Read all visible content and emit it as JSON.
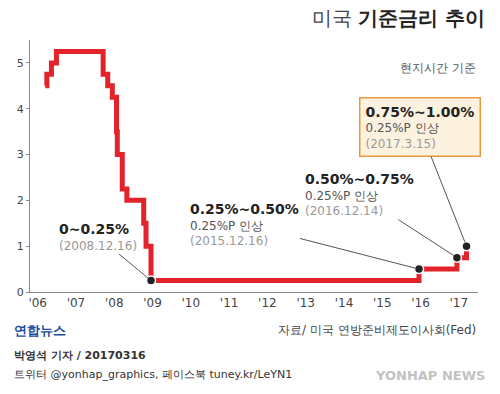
{
  "chart_data": {
    "type": "line",
    "title": "미국 기준금리 추이",
    "subtitle": "현지시간 기준",
    "source": "자료/ 미국 연방준비제도이사회(Fed)",
    "credits": [
      "박영석 기자 / 20170316",
      "트위터 @yonhap_graphics, 페이스북 tuney.kr/LeYN1"
    ],
    "logo": "연합뉴스",
    "watermark": "YONHAP NEWS",
    "x": [
      2006.2,
      2006.24,
      2006.36,
      2006.49,
      2007.71,
      2007.83,
      2007.95,
      2008.06,
      2008.08,
      2008.21,
      2008.33,
      2008.77,
      2008.83,
      2008.96,
      2015.96,
      2016.95,
      2017.2
    ],
    "values": [
      4.5,
      4.75,
      5.0,
      5.25,
      4.75,
      4.5,
      4.25,
      3.5,
      3.0,
      2.25,
      2.0,
      1.5,
      1.0,
      0.25,
      0.5,
      0.75,
      1.0
    ],
    "color": "#e3232b",
    "line_style": "step",
    "xlim": [
      2005.8,
      2017.5
    ],
    "xticks": [
      {
        "value": 2006,
        "label": "'06"
      },
      {
        "value": 2007,
        "label": "'07"
      },
      {
        "value": 2008,
        "label": "'08"
      },
      {
        "value": 2009,
        "label": "'09"
      },
      {
        "value": 2010,
        "label": "'10"
      },
      {
        "value": 2011,
        "label": "'11"
      },
      {
        "value": 2012,
        "label": "'12"
      },
      {
        "value": 2013,
        "label": "'13"
      },
      {
        "value": 2014,
        "label": "'14"
      },
      {
        "value": 2015,
        "label": "'15"
      },
      {
        "value": 2016,
        "label": "'16"
      },
      {
        "value": 2017,
        "label": "'17"
      }
    ],
    "ylim": [
      0,
      5.5
    ],
    "yticks": [
      0,
      1,
      2,
      3,
      4,
      5
    ],
    "grid": false,
    "annotations": [
      {
        "x": 2008.96,
        "y": 0.25,
        "text": [
          "0~0.25%",
          "(2008.12.16)"
        ]
      },
      {
        "x": 2015.96,
        "y": 0.5,
        "text": [
          "0.25%~0.50%",
          "0.25%P 인상",
          "(2015.12.16)"
        ]
      },
      {
        "x": 2016.95,
        "y": 0.75,
        "text": [
          "0.50%~0.75%",
          "0.25%P 인상",
          "(2016.12.14)"
        ]
      },
      {
        "x": 2017.2,
        "y": 1.0,
        "text": [
          "0.75%~1.00%",
          "0.25%P 인상",
          "(2017.3.15)"
        ]
      }
    ]
  }
}
